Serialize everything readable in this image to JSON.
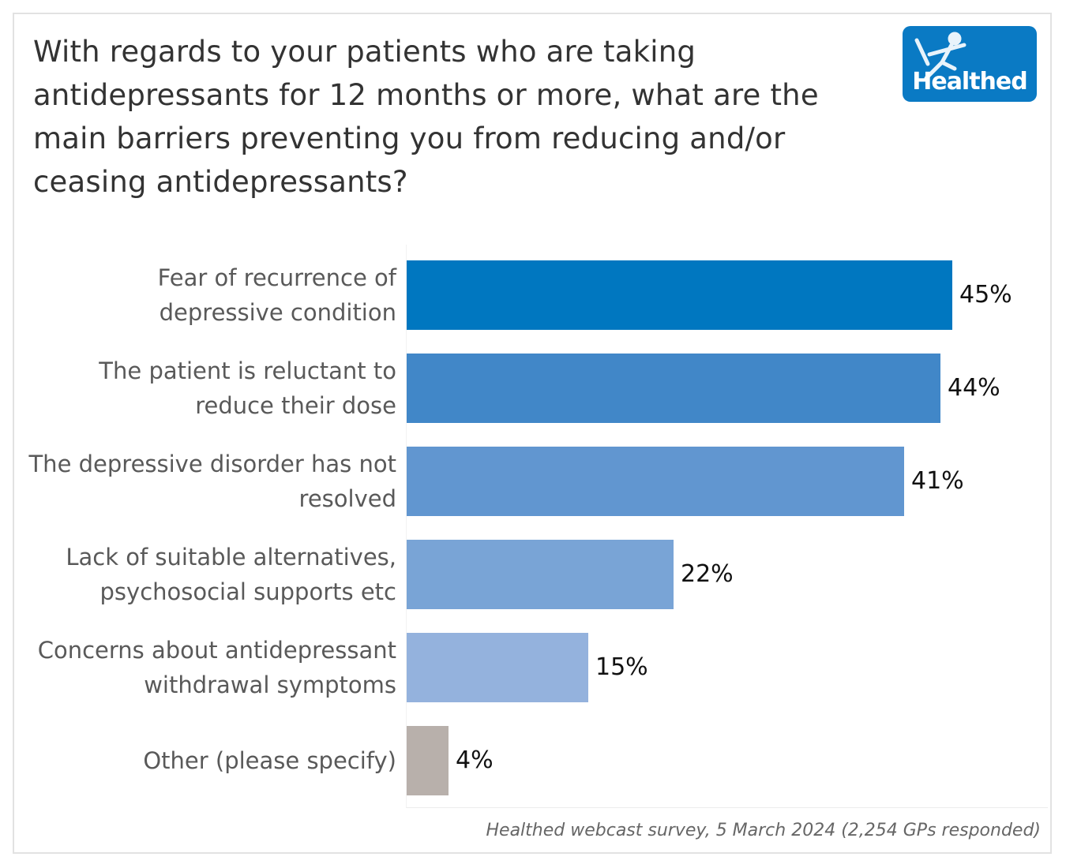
{
  "title": "With regards to your patients who are taking antidepressants for 12 months or more, what are the main barriers preventing you from reducing and/or ceasing antidepressants?",
  "logo": {
    "text": "Healthed",
    "color": "#0a7ac4"
  },
  "source": "Healthed webcast survey, 5 March 2024 (2,254 GPs responded)",
  "chart_data": {
    "type": "bar",
    "orientation": "horizontal",
    "title": "With regards to your patients who are taking antidepressants for 12 months or more, what are the main barriers preventing you from reducing and/or ceasing antidepressants?",
    "categories": [
      [
        "Fear of recurrence of",
        "depressive condition"
      ],
      [
        "The patient is reluctant to",
        "reduce their dose"
      ],
      [
        "The depressive disorder has not",
        "resolved"
      ],
      [
        "Lack of suitable alternatives,",
        "psychosocial supports etc"
      ],
      [
        "Concerns about antidepressant",
        "withdrawal symptoms"
      ],
      [
        "Other (please specify)"
      ]
    ],
    "values": [
      45,
      44,
      41,
      22,
      15,
      4
    ],
    "value_labels": [
      "45%",
      "44%",
      "41%",
      "22%",
      "15%",
      "4%"
    ],
    "colors": [
      "#0077c0",
      "#4187c8",
      "#6196d0",
      "#79a4d6",
      "#94b2dd",
      "#b8b0ab"
    ],
    "xlim": [
      0,
      52
    ],
    "xlabel": "",
    "ylabel": "",
    "grid": false
  }
}
